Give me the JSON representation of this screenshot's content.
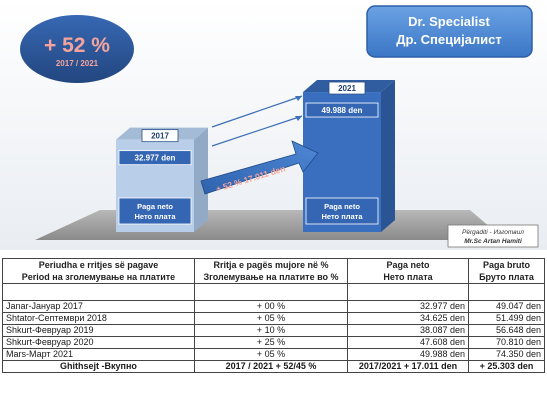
{
  "chart_data": {
    "type": "bar",
    "categories": [
      "2017",
      "2021"
    ],
    "values": [
      32977,
      49988
    ],
    "value_labels": [
      "32.977 den",
      "49.988 den"
    ],
    "unit": "den",
    "bar_captions": [
      [
        "Paga neto",
        "Нето плата"
      ],
      [
        "Paga neto",
        "Нето плата"
      ]
    ],
    "growth_badge": {
      "value": "+ 52 %",
      "period": "2017 / 2021"
    },
    "arrow_label": "+ 52 %  17.011 den",
    "colors": {
      "bar_2017": "#b9cfe9",
      "bar_2021": "#3a6fc0",
      "badge": "#2e5aa3",
      "title_box": "#4a86d3"
    }
  },
  "title": {
    "line1": "Dr. Specialist",
    "line2": "Др. Специјалист"
  },
  "credit": {
    "line1": "Përgaditi - Изготвил",
    "line2": "Mr.Sc Artan Hamiti"
  },
  "table": {
    "headers_top": [
      "Periudha e rritjes së pagave",
      "Rritja e pagës mujore në %",
      "Paga neto",
      "Paga bruto"
    ],
    "headers_bottom": [
      "Period на зголемување на платите",
      "Зголемување на платите во %",
      "Нето плата",
      "Бруто плата"
    ],
    "rows": [
      [
        "Janar-Јануар 2017",
        "+ 00 %",
        "32.977 den",
        "49.047 den"
      ],
      [
        "Shtator-Септември 2018",
        "+ 05 %",
        "34.625 den",
        "51.499 den"
      ],
      [
        "Shkurt-Февруар 2019",
        "+ 10 %",
        "38.087 den",
        "56.648 den"
      ],
      [
        "Shkurt-Февруар 2020",
        "+ 25 %",
        "47.608 den",
        "70.810 den"
      ],
      [
        "Mars-Март 2021",
        "+ 05 %",
        "49.988 den",
        "74.350 den"
      ]
    ],
    "total": [
      "Ghithsejt -Вкупно",
      "2017 / 2021   + 52/45 %",
      "2017/2021   + 17.011 den",
      "+ 25.303 den"
    ]
  }
}
